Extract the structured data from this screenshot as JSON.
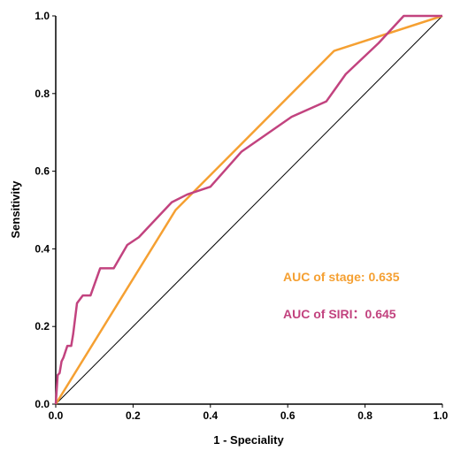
{
  "chart_data": {
    "type": "line",
    "xlabel": "1 - Speciality",
    "ylabel": "Sensitivity",
    "xlim": [
      0,
      1
    ],
    "ylim": [
      0,
      1
    ],
    "x_ticks": [
      "0.0",
      "0.2",
      "0.4",
      "0.6",
      "0.8",
      "1.0"
    ],
    "y_ticks": [
      "0.0",
      "0.2",
      "0.4",
      "0.6",
      "0.8",
      "1.0"
    ],
    "grid": false,
    "reference_line": {
      "x": [
        0,
        1
      ],
      "y": [
        0,
        1
      ],
      "color": "#000000"
    },
    "series": [
      {
        "color": "#F5A032",
        "x": [
          0,
          0.31,
          0.72,
          1.0
        ],
        "y": [
          0,
          0.5,
          0.91,
          1.0
        ]
      },
      {
        "color": "#C2437F",
        "x": [
          0,
          0.005,
          0.01,
          0.015,
          0.02,
          0.03,
          0.04,
          0.045,
          0.055,
          0.07,
          0.09,
          0.115,
          0.15,
          0.185,
          0.215,
          0.3,
          0.34,
          0.4,
          0.48,
          0.61,
          0.7,
          0.75,
          0.835,
          0.9,
          1.0
        ],
        "y": [
          0,
          0.075,
          0.08,
          0.11,
          0.12,
          0.15,
          0.15,
          0.18,
          0.26,
          0.28,
          0.28,
          0.35,
          0.35,
          0.41,
          0.43,
          0.52,
          0.54,
          0.56,
          0.65,
          0.74,
          0.78,
          0.85,
          0.93,
          1.0,
          1.0
        ]
      }
    ],
    "annotations": [
      {
        "text": "AUC of stage: 0.635",
        "color": "#F5A032"
      },
      {
        "text": "AUC of SIRI：0.645",
        "color": "#C2437F"
      }
    ]
  }
}
